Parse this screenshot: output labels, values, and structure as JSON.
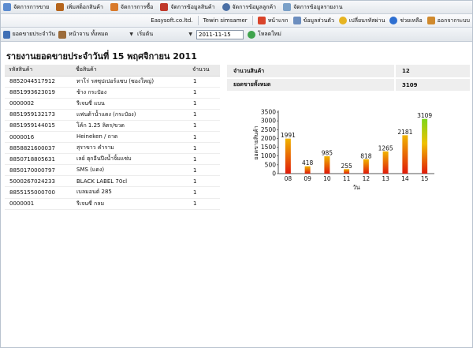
{
  "menu": {
    "items": [
      {
        "label": "จัดการการขาย",
        "icon": "sales-icon",
        "color": "#5b8bd0"
      },
      {
        "label": "เพิ่มสต็อกสินค้า",
        "icon": "stock-icon",
        "color": "#b5651d"
      },
      {
        "label": "จัดการการซื้อ",
        "icon": "purchase-icon",
        "color": "#d97a2b"
      },
      {
        "label": "จัดการข้อมูลสินค้า",
        "icon": "product-icon",
        "color": "#c0392b"
      },
      {
        "label": "จัดการข้อมูลลูกค้า",
        "icon": "customer-icon",
        "color": "#4a6fa5"
      },
      {
        "label": "จัดการข้อมูลรายงาน",
        "icon": "report-icon",
        "color": "#7aa0c8"
      }
    ]
  },
  "userbar": {
    "company": "Easysoft.co.ltd.",
    "user": "Tewin simsamer",
    "home": "หน้าแรก",
    "profile": "ข้อมูลส่วนตัว",
    "password": "เปลี่ยนรหัสผ่าน",
    "help": "ช่วยเหลือ",
    "logout": "ออกจากระบบ"
  },
  "toolbar": {
    "report_label": "ยอดขายประจำวัน",
    "category_value": "หน้าจาน ทั้งหมด",
    "start_value": "เริ่มต้น",
    "date_value": "2011-11-15",
    "reload_label": "โหลดใหม่"
  },
  "page": {
    "title": "รายงานยอดขายประจำวันที่ 15 พฤศจิกายน 2011"
  },
  "table": {
    "headers": [
      "รหัสสินค้า",
      "ชื่อสินค้า",
      "จำนวน"
    ],
    "rows": [
      [
        "8852044517912",
        "ทาโร่ รสซุปเปอร์แซบ (ซองใหญ่)",
        "1"
      ],
      [
        "8851993623019",
        "ช้าง กระป๋อง",
        "1"
      ],
      [
        "0000002",
        "รีเจนซี่ แบน",
        "1"
      ],
      [
        "8851959132173",
        "แฟนต้าน้ำแดง (กระป๋อง)",
        "1"
      ],
      [
        "8851959144015",
        "โค้ก 1.25 ลิตร/ขวด",
        "1"
      ],
      [
        "0000016",
        "Heineken / ถาด",
        "1"
      ],
      [
        "8858821600037",
        "สุราขาว คำราม",
        "1"
      ],
      [
        "8850718805631",
        "เลย์ ฮุกอีนปีงน้ำจิ้มแซ่บ",
        "1"
      ],
      [
        "8850170000797",
        "SMS (แดง)",
        "1"
      ],
      [
        "5000267024233",
        "BLACK LABEL 70cl",
        "1"
      ],
      [
        "8855155000700",
        "เบลมอนต์ 285",
        "1"
      ],
      [
        "0000001",
        "รีเจนซี่ กลม",
        "1"
      ]
    ]
  },
  "summary": {
    "count_label": "จำนวนสินค้า",
    "count_value": "12",
    "total_label": "ยอดขายทั้งหมด",
    "total_value": "3109"
  },
  "chart_data": {
    "type": "bar",
    "categories": [
      "08",
      "09",
      "10",
      "11",
      "12",
      "13",
      "14",
      "15"
    ],
    "values": [
      1991,
      418,
      985,
      255,
      818,
      1265,
      2181,
      3109
    ],
    "xlabel": "วัน",
    "ylabel": "ยอดขายสินค้า",
    "ylim": [
      0,
      3500
    ],
    "yticks": [
      0,
      500,
      1000,
      1500,
      2000,
      2500,
      3000,
      3500
    ],
    "grid": false,
    "colors": {
      "low": "#e02010",
      "high_top": "#f2c200",
      "highlight_top": "#7cd61a"
    }
  }
}
